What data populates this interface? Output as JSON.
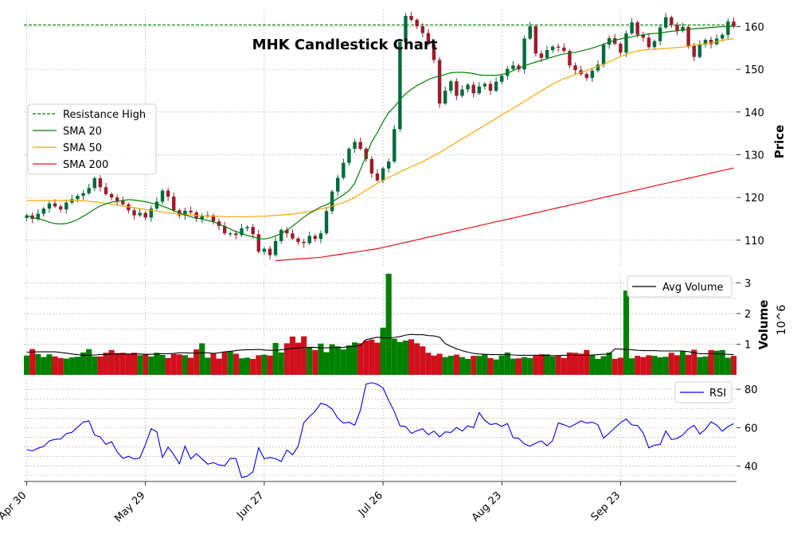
{
  "chart_data": {
    "type": "candlestick",
    "title": "MHK Candlestick Chart",
    "panels": {
      "price": {
        "ylabel": "Price",
        "ylim": [
          104,
          164
        ],
        "yticks": [
          110,
          120,
          130,
          140,
          150,
          160
        ],
        "resistance_high": 160.4,
        "legend": [
          "Resistance High",
          "SMA 20",
          "SMA 50",
          "SMA 200"
        ],
        "legend_position": "center-left"
      },
      "volume": {
        "ylabel": "Volume",
        "unit_label": "10^6",
        "ylim": [
          0,
          3.3
        ],
        "yticks": [
          1,
          2,
          3
        ],
        "legend": [
          "Avg Volume"
        ],
        "legend_position": "top-right"
      },
      "rsi": {
        "ylim": [
          32,
          85
        ],
        "yticks": [
          40,
          60,
          80
        ],
        "legend": [
          "RSI"
        ],
        "legend_position": "top-right"
      }
    },
    "x_tick_labels": [
      {
        "index": 0,
        "label": "Apr 30"
      },
      {
        "index": 21,
        "label": "May 29"
      },
      {
        "index": 42,
        "label": "Jun 27"
      },
      {
        "index": 63,
        "label": "Jul 26"
      },
      {
        "index": 84,
        "label": "Aug 23"
      },
      {
        "index": 105,
        "label": "Sep 23"
      }
    ],
    "n_bars": 126,
    "close": [
      115.8,
      115.0,
      116.2,
      117.4,
      118.6,
      117.9,
      117.2,
      118.8,
      119.6,
      120.4,
      121.0,
      122.2,
      124.5,
      122.4,
      120.8,
      120.0,
      119.2,
      118.4,
      117.0,
      115.8,
      116.4,
      115.3,
      117.4,
      119.0,
      121.6,
      120.2,
      117.0,
      115.8,
      116.9,
      116.5,
      115.0,
      115.6,
      115.8,
      114.4,
      113.3,
      111.6,
      111.6,
      111.2,
      112.8,
      113.1,
      111.4,
      107.3,
      108.0,
      106.5,
      109.8,
      112.4,
      111.6,
      110.4,
      109.6,
      109.3,
      111.0,
      110.3,
      111.6,
      116.8,
      121.4,
      124.6,
      128.1,
      131.4,
      133.0,
      131.4,
      129.0,
      125.6,
      124.0,
      126.8,
      128.4,
      136.0,
      156.4,
      162.5,
      161.6,
      160.1,
      158.5,
      155.9,
      152.2,
      142.0,
      145.0,
      147.2,
      143.8,
      145.3,
      146.4,
      144.4,
      146.0,
      146.6,
      145.0,
      147.1,
      148.5,
      150.1,
      150.9,
      150.0,
      157.2,
      160.1,
      153.7,
      152.7,
      154.5,
      155.3,
      155.1,
      154.3,
      150.9,
      149.8,
      148.9,
      148.0,
      149.7,
      151.1,
      155.8,
      157.3,
      156.0,
      153.9,
      158.4,
      161.0,
      158.1,
      157.4,
      155.2,
      156.6,
      159.8,
      162.2,
      160.4,
      159.0,
      159.9,
      155.5,
      152.9,
      155.8,
      156.9,
      155.9,
      157.2,
      158.1,
      161.2,
      160.0,
      162.5
    ],
    "sma20": [
      115.8,
      115.3,
      115.0,
      114.7,
      114.2,
      113.9,
      113.8,
      113.9,
      114.3,
      114.8,
      115.6,
      116.4,
      117.3,
      118.0,
      118.5,
      118.9,
      119.1,
      119.3,
      119.5,
      119.4,
      119.2,
      119.0,
      118.7,
      118.4,
      118.0,
      117.5,
      116.9,
      116.4,
      115.9,
      115.5,
      115.2,
      114.9,
      114.6,
      114.3,
      113.8,
      113.2,
      112.6,
      112.0,
      111.6,
      111.1,
      110.8,
      110.4,
      110.3,
      110.5,
      111.0,
      111.6,
      112.3,
      113.3,
      114.3,
      115.4,
      116.3,
      117.0,
      117.8,
      118.3,
      119.0,
      119.8,
      120.6,
      121.6,
      123.3,
      126.5,
      129.7,
      133.0,
      135.2,
      137.7,
      139.9,
      141.2,
      142.9,
      144.3,
      145.3,
      146.2,
      146.9,
      147.6,
      148.1,
      148.4,
      148.8,
      149.2,
      149.3,
      149.3,
      149.2,
      149.0,
      148.7,
      148.6,
      148.6,
      148.6,
      148.8,
      149.1,
      149.7,
      150.3,
      150.8,
      151.3,
      151.7,
      152.1,
      152.5,
      152.9,
      153.3,
      153.6,
      153.8,
      154.0,
      154.3,
      154.6,
      155.0,
      155.4,
      155.9,
      156.4,
      156.8,
      157.1,
      157.4,
      157.6,
      157.9,
      158.1,
      158.3,
      158.4,
      158.5,
      158.7,
      158.9,
      159.0,
      159.2,
      159.4,
      159.5,
      159.6,
      159.7,
      159.8,
      159.9,
      160.0,
      160.0,
      160.1
    ],
    "sma50": [
      119.3,
      119.3,
      119.3,
      119.3,
      119.3,
      119.3,
      119.3,
      119.3,
      119.3,
      119.3,
      119.2,
      119.1,
      119.0,
      118.8,
      118.6,
      118.4,
      118.2,
      118.0,
      117.8,
      117.6,
      117.4,
      117.2,
      117.0,
      116.8,
      116.6,
      116.4,
      116.3,
      116.1,
      116.0,
      115.9,
      115.8,
      115.7,
      115.6,
      115.6,
      115.6,
      115.5,
      115.5,
      115.5,
      115.5,
      115.5,
      115.5,
      115.6,
      115.6,
      115.7,
      115.8,
      115.9,
      116.0,
      116.1,
      116.3,
      116.5,
      116.7,
      117.0,
      117.3,
      117.6,
      118.0,
      118.4,
      118.8,
      119.4,
      120.0,
      120.8,
      121.7,
      122.5,
      123.3,
      124.0,
      124.7,
      125.3,
      126.0,
      126.6,
      127.2,
      127.8,
      128.4,
      129.1,
      129.8,
      130.5,
      131.3,
      132.1,
      132.9,
      133.7,
      134.5,
      135.3,
      136.1,
      136.9,
      137.7,
      138.5,
      139.3,
      140.1,
      140.9,
      141.7,
      142.5,
      143.3,
      144.2,
      145.0,
      145.8,
      146.5,
      147.2,
      147.8,
      148.3,
      148.8,
      149.3,
      149.7,
      150.2,
      150.7,
      151.2,
      151.8,
      152.4,
      153.0,
      153.5,
      154.0,
      154.3,
      154.5,
      154.6,
      154.7,
      154.8,
      154.9,
      155.0,
      155.1,
      155.2,
      155.4,
      155.6,
      155.8,
      156.0,
      156.2,
      156.5,
      156.8,
      157.0,
      157.2
    ],
    "sma200_start_index": 44,
    "sma200": [
      105.2,
      105.3,
      105.4,
      105.5,
      105.6,
      105.7,
      105.8,
      105.9,
      106.0,
      106.2,
      106.4,
      106.6,
      106.8,
      107.0,
      107.2,
      107.4,
      107.6,
      107.8,
      108.0,
      108.3,
      108.6,
      108.9,
      109.2,
      109.5,
      109.8,
      110.1,
      110.4,
      110.7,
      111.0,
      111.3,
      111.6,
      111.9,
      112.2,
      112.5,
      112.8,
      113.1,
      113.4,
      113.7,
      114.0,
      114.3,
      114.6,
      114.9,
      115.2,
      115.5,
      115.8,
      116.1,
      116.4,
      116.7,
      117.0,
      117.3,
      117.6,
      117.9,
      118.2,
      118.5,
      118.8,
      119.1,
      119.4,
      119.7,
      120.0,
      120.3,
      120.6,
      120.9,
      121.2,
      121.5,
      121.8,
      122.1,
      122.4,
      122.7,
      123.0,
      123.3,
      123.6,
      123.9,
      124.2,
      124.5,
      124.8,
      125.1,
      125.4,
      125.7,
      126.0,
      126.3,
      126.6,
      126.9
    ],
    "volume_millions": [
      0.63,
      0.84,
      0.68,
      0.58,
      0.67,
      0.6,
      0.55,
      0.53,
      0.57,
      0.59,
      0.73,
      0.84,
      0.6,
      0.6,
      0.72,
      0.81,
      0.71,
      0.72,
      0.68,
      0.72,
      0.64,
      0.68,
      0.6,
      0.72,
      0.65,
      0.55,
      0.68,
      0.67,
      0.64,
      0.56,
      0.83,
      1.03,
      0.56,
      0.69,
      0.53,
      0.74,
      0.76,
      0.69,
      0.54,
      0.56,
      0.52,
      0.64,
      0.66,
      0.63,
      1.04,
      0.73,
      1.03,
      1.25,
      1.05,
      1.26,
      0.9,
      0.81,
      1.02,
      0.74,
      1.0,
      0.93,
      0.83,
      0.96,
      1.06,
      1.03,
      1.12,
      1.15,
      1.05,
      1.54,
      3.35,
      1.18,
      1.07,
      1.12,
      1.16,
      1.03,
      0.93,
      0.72,
      0.63,
      0.69,
      0.58,
      0.62,
      0.66,
      0.58,
      0.52,
      0.62,
      0.62,
      0.66,
      0.55,
      0.5,
      0.63,
      0.73,
      0.53,
      0.54,
      0.58,
      0.55,
      0.62,
      0.67,
      0.67,
      0.6,
      0.62,
      0.55,
      0.73,
      0.72,
      0.69,
      0.81,
      0.65,
      0.52,
      0.61,
      0.73,
      0.52,
      0.56,
      2.75,
      0.54,
      0.62,
      0.58,
      0.64,
      0.62,
      0.57,
      0.59,
      0.72,
      0.64,
      0.77,
      0.65,
      0.82,
      0.58,
      0.6,
      0.81,
      0.79,
      0.81,
      0.56,
      0.62
    ],
    "avg_volume_millions": [
      0.74,
      0.74,
      0.75,
      0.75,
      0.75,
      0.75,
      0.73,
      0.71,
      0.68,
      0.66,
      0.64,
      0.64,
      0.65,
      0.66,
      0.67,
      0.68,
      0.68,
      0.68,
      0.68,
      0.68,
      0.68,
      0.67,
      0.67,
      0.68,
      0.69,
      0.69,
      0.7,
      0.72,
      0.72,
      0.71,
      0.71,
      0.72,
      0.72,
      0.7,
      0.72,
      0.75,
      0.77,
      0.79,
      0.81,
      0.82,
      0.82,
      0.83,
      0.81,
      0.8,
      0.8,
      0.82,
      0.84,
      0.86,
      0.88,
      0.89,
      0.9,
      0.9,
      0.88,
      0.88,
      0.88,
      0.89,
      0.9,
      0.92,
      0.93,
      0.96,
      1.15,
      1.19,
      1.23,
      1.21,
      1.2,
      1.22,
      1.25,
      1.3,
      1.32,
      1.31,
      1.31,
      1.28,
      1.27,
      1.23,
      1.02,
      0.93,
      0.85,
      0.79,
      0.74,
      0.7,
      0.68,
      0.67,
      0.66,
      0.66,
      0.66,
      0.66,
      0.65,
      0.64,
      0.64,
      0.64,
      0.64,
      0.64,
      0.63,
      0.63,
      0.63,
      0.64,
      0.64,
      0.64,
      0.64,
      0.64,
      0.65,
      0.66,
      0.67,
      0.67,
      0.85,
      0.84,
      0.83,
      0.82,
      0.8,
      0.79,
      0.79,
      0.79,
      0.78,
      0.78,
      0.78,
      0.78,
      0.78,
      0.76,
      0.72,
      0.69,
      0.69,
      0.69,
      0.69,
      0.68,
      0.67,
      0.66
    ],
    "rsi": [
      48.6,
      47.9,
      49.3,
      50.2,
      53.1,
      53.9,
      54.1,
      56.9,
      57.6,
      60.3,
      62.9,
      63.5,
      56.2,
      55.1,
      51.3,
      52.7,
      47.4,
      44.0,
      45.1,
      43.7,
      44.2,
      51.3,
      59.4,
      57.9,
      44.6,
      49.9,
      46.0,
      41.2,
      50.4,
      43.7,
      46.5,
      43.7,
      41.0,
      41.8,
      40.6,
      40.2,
      44.1,
      43.9,
      34.0,
      34.8,
      37.0,
      49.5,
      43.8,
      44.5,
      43.8,
      42.4,
      48.3,
      45.9,
      50.4,
      62.6,
      65.8,
      68.5,
      72.7,
      71.8,
      69.7,
      65.0,
      62.4,
      62.8,
      61.2,
      69.0,
      82.7,
      83.4,
      82.6,
      80.6,
      74.2,
      68.3,
      60.9,
      60.6,
      57.0,
      58.4,
      59.4,
      56.3,
      58.2,
      55.2,
      57.8,
      57.5,
      60.1,
      58.2,
      61.0,
      60.0,
      67.8,
      63.8,
      61.6,
      62.2,
      60.6,
      62.2,
      54.8,
      54.4,
      51.5,
      50.4,
      51.9,
      53.1,
      50.6,
      53.3,
      62.5,
      61.5,
      60.3,
      61.8,
      63.5,
      62.4,
      62.9,
      61.5,
      54.5,
      57.2,
      59.9,
      62.6,
      64.5,
      61.4,
      61.1,
      57.3,
      49.5,
      50.9,
      51.2,
      58.3,
      53.8,
      54.4,
      56.2,
      59.4,
      61.2,
      56.7,
      59.1,
      63.0,
      61.3,
      58.2,
      60.6,
      62.1
    ]
  }
}
